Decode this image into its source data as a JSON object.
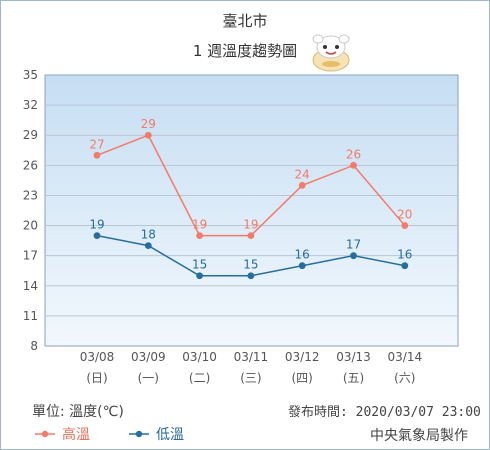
{
  "header": {
    "location": "臺北市",
    "subtitle": "1 週溫度趨勢圖"
  },
  "footer": {
    "unit_label": "單位: 溫度(℃)",
    "publish_time": "發布時間: 2020/03/07 23:00",
    "agency": "中央氣象局製作"
  },
  "colors": {
    "high": "#f47b69",
    "low": "#256e9e",
    "plot_top": "#c6def3",
    "plot_bottom": "#f2f8fd",
    "grid": "#b9c6d4",
    "axis_text": "#555555"
  },
  "chart_data": {
    "type": "line",
    "categories": [
      "03/08",
      "03/09",
      "03/10",
      "03/11",
      "03/12",
      "03/13",
      "03/14"
    ],
    "weekdays": [
      "(日)",
      "(一)",
      "(二)",
      "(三)",
      "(四)",
      "(五)",
      "(六)"
    ],
    "series": [
      {
        "name": "高溫",
        "color_key": "high",
        "values": [
          27,
          29,
          19,
          19,
          24,
          26,
          20
        ]
      },
      {
        "name": "低溫",
        "color_key": "low",
        "values": [
          19,
          18,
          15,
          15,
          16,
          17,
          16
        ]
      }
    ],
    "yticks": [
      8,
      11,
      14,
      17,
      20,
      23,
      26,
      29,
      32,
      35
    ],
    "ylim": [
      8,
      35
    ],
    "grid": true,
    "legend_position": "bottom-left"
  }
}
